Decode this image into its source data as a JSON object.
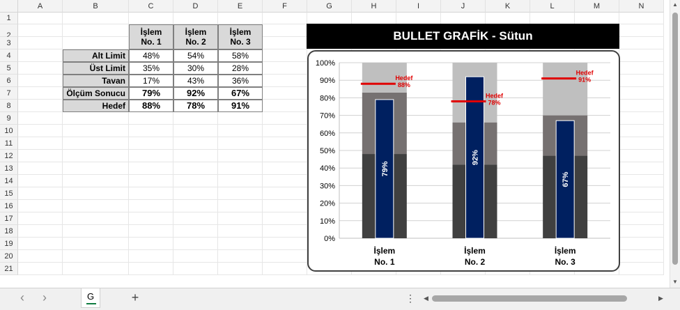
{
  "columns": [
    "A",
    "B",
    "C",
    "D",
    "E",
    "F",
    "G",
    "H",
    "I",
    "J",
    "K",
    "L",
    "M",
    "N"
  ],
  "rows": [
    "1",
    "2",
    "3",
    "4",
    "5",
    "6",
    "7",
    "8",
    "9",
    "10",
    "11",
    "12",
    "13",
    "14",
    "15",
    "16",
    "17",
    "18",
    "19",
    "20",
    "21"
  ],
  "table": {
    "headers": [
      {
        "line1": "İşlem",
        "line2": "No. 1"
      },
      {
        "line1": "İşlem",
        "line2": "No. 2"
      },
      {
        "line1": "İşlem",
        "line2": "No. 3"
      }
    ],
    "rows": [
      {
        "label": "Alt Limit",
        "values": [
          "48%",
          "54%",
          "58%"
        ],
        "bold": false
      },
      {
        "label": "Üst Limit",
        "values": [
          "35%",
          "30%",
          "28%"
        ],
        "bold": false
      },
      {
        "label": "Tavan",
        "values": [
          "17%",
          "43%",
          "36%"
        ],
        "bold": false
      },
      {
        "label": "Ölçüm Sonucu",
        "values": [
          "79%",
          "92%",
          "67%"
        ],
        "bold": true
      },
      {
        "label": "Hedef",
        "values": [
          "88%",
          "78%",
          "91%"
        ],
        "bold": true
      }
    ]
  },
  "chart_title": "BULLET  GRAFİK - Sütun",
  "chart_data": {
    "type": "bar",
    "title": "BULLET  GRAFİK - Sütun",
    "categories": [
      {
        "line1": "İşlem",
        "line2": "No. 1"
      },
      {
        "line1": "İşlem",
        "line2": "No. 2"
      },
      {
        "line1": "İşlem",
        "line2": "No. 3"
      }
    ],
    "y_ticks": [
      "0%",
      "10%",
      "20%",
      "30%",
      "40%",
      "50%",
      "60%",
      "70%",
      "80%",
      "90%",
      "100%"
    ],
    "ylim": [
      0,
      100
    ],
    "bands": [
      {
        "name": "Alt Limit",
        "values": [
          48,
          42,
          47
        ],
        "color": "#404040"
      },
      {
        "name": "Üst Limit",
        "values": [
          35,
          24,
          23
        ],
        "color": "#767171"
      },
      {
        "name": "Tavan",
        "values": [
          17,
          34,
          30
        ],
        "color": "#bfbfbf"
      }
    ],
    "measure": {
      "values": [
        79,
        92,
        67
      ],
      "labels": [
        "79%",
        "92%",
        "67%"
      ],
      "color": "#002060"
    },
    "target": {
      "values": [
        88,
        78,
        91
      ],
      "labels": [
        "Hedef\n88%",
        "Hedef\n78%",
        "Hedef\n91%"
      ],
      "word": "Hedef",
      "pct": [
        "88%",
        "78%",
        "91%"
      ],
      "color": "#e00000"
    },
    "grid": true,
    "legend": "none"
  },
  "sheet_tab": "G",
  "add_sheet": "+",
  "nav_prev": "‹",
  "nav_next": "›",
  "more": "⋮"
}
